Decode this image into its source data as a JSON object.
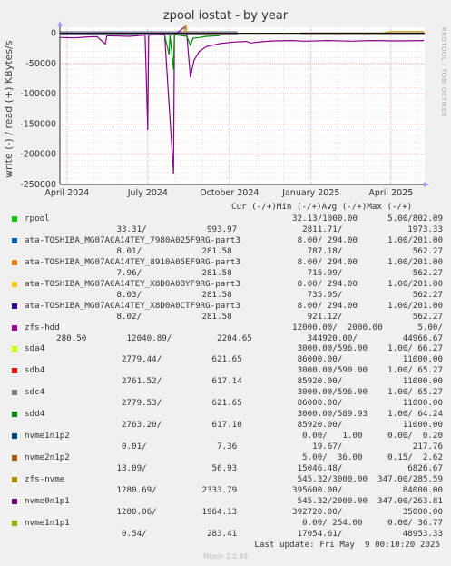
{
  "title": "zpool iostat - by year",
  "side_label": "RRDTOOL / TOBI OETIKER",
  "chart_data": {
    "type": "line",
    "title": "zpool iostat - by year",
    "ylabel": "write (-) / read (+) KBytes/s",
    "ylim": [
      -250000,
      10000
    ],
    "yticks": [
      0,
      -50000,
      -100000,
      -150000,
      -200000,
      -250000
    ],
    "ytick_labels": [
      "0",
      "-50000",
      "-100000",
      "-150000",
      "-200000",
      "-250000"
    ],
    "xlim": [
      "2024-03-24",
      "2025-05-09"
    ],
    "xticks": [
      "2024-04-01",
      "2024-07-01",
      "2024-10-01",
      "2025-01-01",
      "2025-04-01"
    ],
    "xtick_labels": [
      "April 2024",
      "July 2024",
      "October 2024",
      "January 2025",
      "April 2025"
    ],
    "grid": true,
    "series": [
      {
        "name": "zfs-hdd",
        "color": "#880088",
        "values": [
          [
            "2024-03-24",
            -7000
          ],
          [
            "2024-04-10",
            -7500
          ],
          [
            "2024-04-25",
            -6000
          ],
          [
            "2024-05-05",
            -5500
          ],
          [
            "2024-05-14",
            -18000
          ],
          [
            "2024-05-16",
            -4000
          ],
          [
            "2024-06-10",
            -5000
          ],
          [
            "2024-06-28",
            -3000
          ],
          [
            "2024-07-01",
            -160000
          ],
          [
            "2024-07-02",
            -3000
          ],
          [
            "2024-07-20",
            -2000
          ],
          [
            "2024-07-30",
            -232000
          ],
          [
            "2024-07-31",
            -3000
          ],
          [
            "2024-08-13",
            12000
          ],
          [
            "2024-08-14",
            -3000
          ],
          [
            "2024-08-18",
            -73000
          ],
          [
            "2024-08-22",
            -45000
          ],
          [
            "2024-08-28",
            -30000
          ],
          [
            "2024-09-05",
            -22000
          ],
          [
            "2024-09-20",
            -17000
          ],
          [
            "2024-10-05",
            -14500
          ],
          [
            "2024-10-20",
            -13500
          ],
          [
            "2024-10-25",
            -16000
          ],
          [
            "2024-11-05",
            -14000
          ],
          [
            "2024-11-20",
            -12500
          ],
          [
            "2024-12-10",
            -12000
          ],
          [
            "2024-12-25",
            -13000
          ],
          [
            "2025-01-20",
            -12000
          ],
          [
            "2025-02-15",
            -13000
          ],
          [
            "2025-03-10",
            -12000
          ],
          [
            "2025-04-10",
            -12500
          ],
          [
            "2025-05-08",
            -12000
          ]
        ]
      },
      {
        "name": "sdd4",
        "color": "#008f00",
        "values": [
          [
            "2024-07-20",
            -3000
          ],
          [
            "2024-07-25",
            -35000
          ],
          [
            "2024-07-26",
            -2000
          ],
          [
            "2024-07-30",
            -60000
          ],
          [
            "2024-07-31",
            -2000
          ],
          [
            "2024-08-14",
            -5000
          ],
          [
            "2024-08-18",
            -20000
          ],
          [
            "2024-08-21",
            -8000
          ],
          [
            "2024-08-28",
            -7000
          ],
          [
            "2024-09-05",
            -5000
          ],
          [
            "2024-09-20",
            -4000
          ]
        ]
      },
      {
        "name": "zfs-nvme",
        "color": "#cc9900",
        "values": [
          [
            "2024-08-10",
            0
          ],
          [
            "2024-08-13",
            14000
          ],
          [
            "2024-08-14",
            0
          ],
          [
            "2025-03-20",
            0
          ],
          [
            "2025-04-01",
            3000
          ],
          [
            "2025-05-08",
            3000
          ]
        ]
      }
    ]
  },
  "legend_header": "Cur (-/+)Min (-/+)Avg (-/+)Max (-/+)",
  "legend": [
    {
      "name": "rpool",
      "color": "#00cc00",
      "line1": "32.13/1000.00      5.00/802.09",
      "line2": " 33.31/            993.97             2811.71/             1973.33"
    },
    {
      "name": "ata-TOSHIBA_MG07ACA14TEY_7980A025F9RG-part3",
      "color": "#0066b3",
      "line1": "8.00/ 294.00      1.00/201.00",
      "line2": " 8.01/            281.58               787.18/              562.27"
    },
    {
      "name": "ata-TOSHIBA_MG07ACA14TEY_8910A05EF9RG-part3",
      "color": "#ff8000",
      "line1": "8.00/ 294.00      1.00/201.00",
      "line2": " 7.96/            281.58               715.99/              562.27"
    },
    {
      "name": "ata-TOSHIBA_MG07ACA14TEY_X8D0A0BYF9RG-part3",
      "color": "#ffcc00",
      "line1": "8.00/ 294.00      1.00/201.00",
      "line2": " 8.03/            281.58               735.95/              562.27"
    },
    {
      "name": "ata-TOSHIBA_MG07ACA14TEY_X8D0A0CTF9RG-part3",
      "color": "#330099",
      "line1": "8.00/ 294.00      1.00/201.00",
      "line2": " 8.02/            281.58               921.12/              562.27"
    },
    {
      "name": "zfs-hdd",
      "color": "#990099",
      "line1": "12000.00/  2000.00       5.00/",
      "line2": "280.50        12040.89/         2204.65           344920.00/         44966.67"
    },
    {
      "name": "sda4",
      "color": "#ccff00",
      "line1": "3000.00/596.00    1.00/ 66.27",
      "line2": "2779.44/          621.65           86000.00/            11000.00"
    },
    {
      "name": "sdb4",
      "color": "#ff0000",
      "line1": "3000.00/590.00    1.00/ 65.27",
      "line2": "2761.52/          617.14           85920.00/            11000.00"
    },
    {
      "name": "sdc4",
      "color": "#808080",
      "line1": "3000.00/596.00    1.00/ 65.27",
      "line2": "2779.53/          621.65           86000.00/            11000.00"
    },
    {
      "name": "sdd4",
      "color": "#008f00",
      "line1": "3000.00/589.93    1.00/ 64.24",
      "line2": "2763.20/          617.10           85920.00/            11000.00"
    },
    {
      "name": "nvme1n1p2",
      "color": "#00487d",
      "line1": "0.00/   1.00     0.00/  0.20",
      "line2": " 0.01/              7.36               19.67/              217.76"
    },
    {
      "name": "nvme2n1p2",
      "color": "#b35a00",
      "line1": "5.00/  36.00     0.15/  2.62",
      "line2": "18.09/             56.93            15046.48/             6826.67"
    },
    {
      "name": "zfs-nvme",
      "color": "#b38f00",
      "line1": "545.32/3000.00  347.00/285.59",
      "line2": "1280.69/         2333.79           395600.00/            84000.00"
    },
    {
      "name": "nvme0n1p1",
      "color": "#6b006b",
      "line1": "545.32/2000.00  347.00/263.81",
      "line2": "1280.06/         1964.13           392720.00/            35000.00"
    },
    {
      "name": "nvme1n1p1",
      "color": "#8fb300",
      "line1": "0.00/ 254.00     0.00/ 36.77",
      "line2": " 0.54/            283.41            17054.61/            48953.33"
    }
  ],
  "last_update": "Last update: Fri May  9 00:10:20 2025",
  "munin_version": "Munin 2.0.49"
}
